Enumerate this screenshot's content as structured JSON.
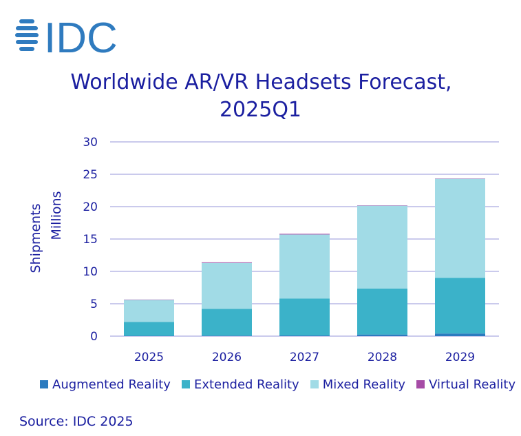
{
  "logo": {
    "text": "IDC",
    "color": "#2f7bbf"
  },
  "chart_data": {
    "type": "bar",
    "stacked": true,
    "title": "Worldwide AR/VR Headsets Forecast,",
    "subtitle": "2025Q1",
    "ylabel_line1": "Shipments",
    "ylabel_line2": "Millions",
    "ylim": [
      0,
      30
    ],
    "yticks": [
      0,
      5,
      10,
      15,
      20,
      25,
      30
    ],
    "categories": [
      "2025",
      "2026",
      "2027",
      "2028",
      "2029"
    ],
    "grid": true,
    "legend_position": "bottom",
    "series": [
      {
        "name": "Augmented Reality",
        "color": "#2b7bbf",
        "values": [
          0.05,
          0.08,
          0.1,
          0.25,
          0.4
        ]
      },
      {
        "name": "Extended Reality",
        "color": "#3bb2c9",
        "values": [
          2.15,
          4.12,
          5.7,
          7.1,
          8.6
        ]
      },
      {
        "name": "Mixed Reality",
        "color": "#a1dbe6",
        "values": [
          3.4,
          7.1,
          9.9,
          12.8,
          15.3
        ]
      },
      {
        "name": "Virtual Reality",
        "color": "#a64ca6",
        "values": [
          0.05,
          0.1,
          0.1,
          0.05,
          0.05
        ]
      }
    ]
  },
  "source": "Source: IDC 2025",
  "colors": {
    "text": "#1b1fa0",
    "grid": "#b9b9e6"
  }
}
